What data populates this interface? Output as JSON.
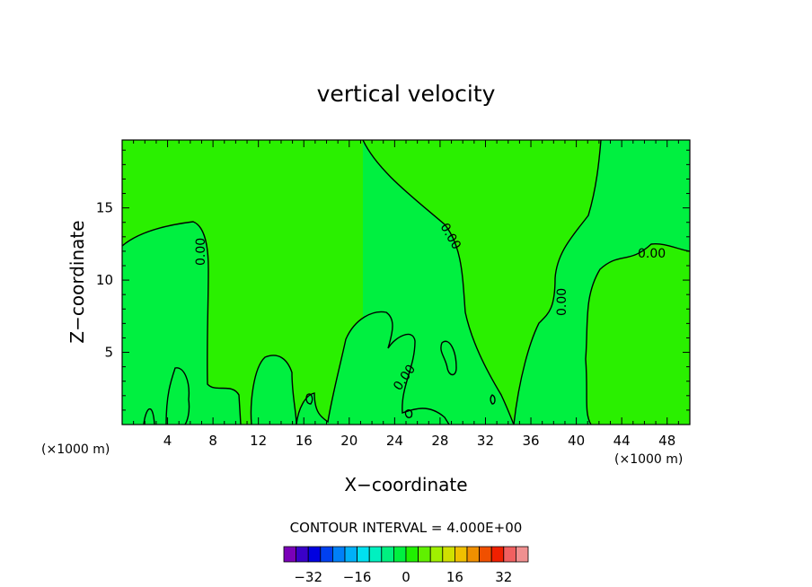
{
  "chart_data": {
    "type": "heatmap",
    "title": "vertical velocity",
    "xlabel": "X−coordinate",
    "ylabel": "Z−coordinate",
    "x_unit": "(×1000 m)",
    "xlim": [
      0,
      50
    ],
    "ylim": [
      0,
      19.7
    ],
    "x_ticks": [
      4,
      8,
      12,
      16,
      20,
      24,
      28,
      32,
      36,
      40,
      44,
      48
    ],
    "y_ticks": [
      5,
      10,
      15
    ],
    "contour_interval_text": "CONTOUR INTERVAL = 4.000E+00",
    "contour_labels": [
      "0.00",
      "0.00",
      "0.00",
      "0.00",
      "0.00"
    ],
    "colorbar": {
      "ticks": [
        "−32",
        "−16",
        "0",
        "16",
        "32"
      ],
      "tick_values": [
        -32,
        -16,
        0,
        16,
        32
      ],
      "range": [
        -40,
        40
      ],
      "colors": [
        "#7a00b8",
        "#3a00c8",
        "#0000e0",
        "#0040f0",
        "#0080f8",
        "#00b0f8",
        "#00e0f0",
        "#00f0c0",
        "#00f080",
        "#00f040",
        "#20f000",
        "#60f000",
        "#a0f000",
        "#d0e000",
        "#f0c000",
        "#f09000",
        "#f05000",
        "#f02000",
        "#f06060",
        "#f09090"
      ]
    },
    "regions": {
      "negative_color": "#00f040",
      "positive_color": "#2af000",
      "contour_color": "#000000",
      "contour_level": 0
    }
  }
}
